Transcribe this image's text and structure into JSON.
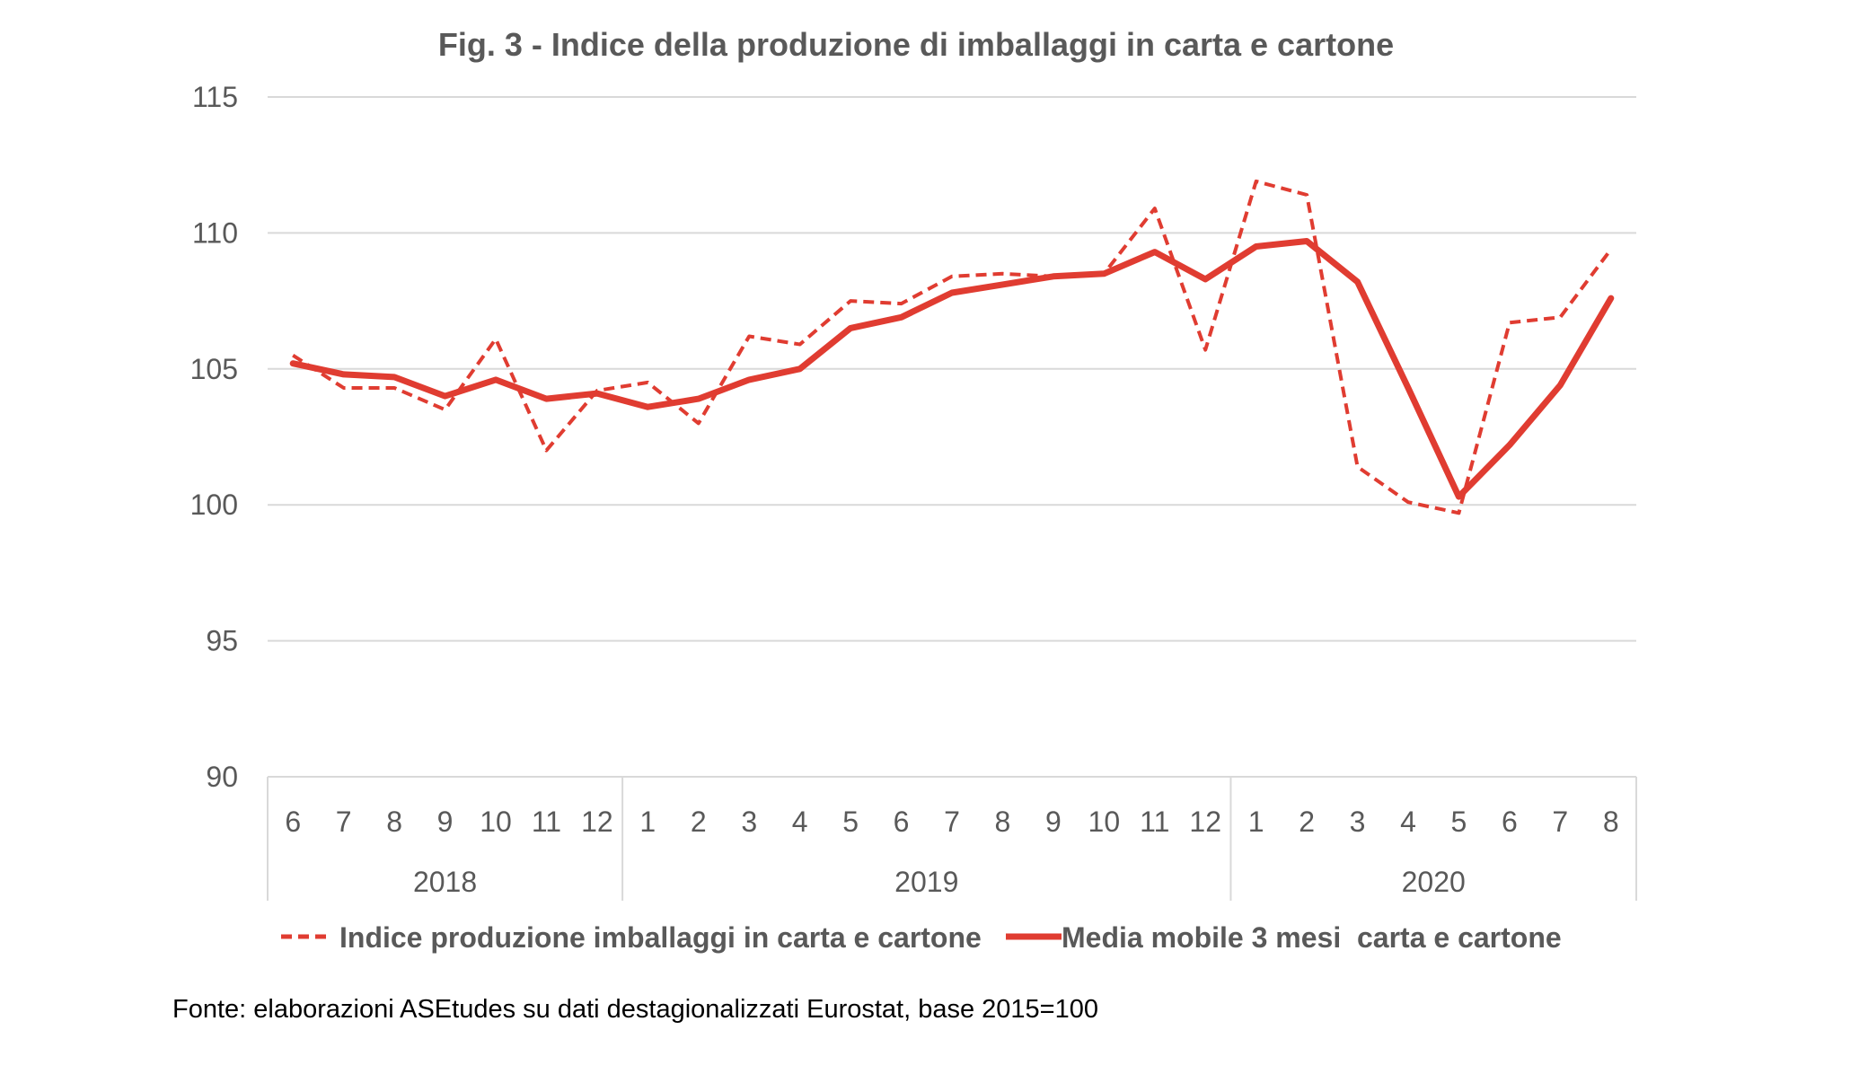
{
  "chart_data": {
    "type": "line",
    "title": "Fig. 3 - Indice della produzione di imballaggi in carta e cartone",
    "xlabel": "",
    "ylabel": "",
    "ylim": [
      90,
      115
    ],
    "yticks": [
      90,
      95,
      100,
      105,
      110,
      115
    ],
    "grid": true,
    "legend_position": "bottom",
    "months": [
      "6",
      "7",
      "8",
      "9",
      "10",
      "11",
      "12",
      "1",
      "2",
      "3",
      "4",
      "5",
      "6",
      "7",
      "8",
      "9",
      "10",
      "11",
      "12",
      "1",
      "2",
      "3",
      "4",
      "5",
      "6",
      "7",
      "8"
    ],
    "year_groups": [
      {
        "label": "2018",
        "start": 0,
        "count": 7
      },
      {
        "label": "2019",
        "start": 7,
        "count": 12
      },
      {
        "label": "2020",
        "start": 19,
        "count": 8
      }
    ],
    "series": [
      {
        "name": "Indice produzione imballaggi in carta e cartone",
        "style": "dashed",
        "color": "#E03C31",
        "values": [
          105.5,
          104.3,
          104.3,
          103.5,
          106.1,
          102.0,
          104.2,
          104.5,
          103.0,
          106.2,
          105.9,
          107.5,
          107.4,
          108.4,
          108.5,
          108.4,
          108.5,
          110.9,
          105.7,
          111.9,
          111.4,
          101.4,
          100.1,
          99.7,
          106.7,
          106.9,
          109.4
        ]
      },
      {
        "name": "Media mobile 3 mesi  carta e cartone",
        "style": "solid",
        "color": "#E03C31",
        "values": [
          105.2,
          104.8,
          104.7,
          104.0,
          104.6,
          103.9,
          104.1,
          103.6,
          103.9,
          104.6,
          105.0,
          106.5,
          106.9,
          107.8,
          108.1,
          108.4,
          108.5,
          109.3,
          108.3,
          109.5,
          109.7,
          108.2,
          104.3,
          100.3,
          102.2,
          104.4,
          107.6
        ]
      }
    ]
  },
  "source_note": "Fonte: elaborazioni ASEtudes su dati destagionalizzati Eurostat, base 2015=100"
}
